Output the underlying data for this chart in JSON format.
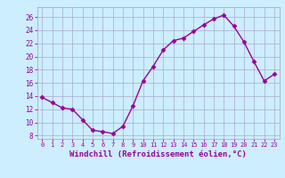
{
  "x": [
    0,
    1,
    2,
    3,
    4,
    5,
    6,
    7,
    8,
    9,
    10,
    11,
    12,
    13,
    14,
    15,
    16,
    17,
    18,
    19,
    20,
    21,
    22,
    23
  ],
  "y": [
    13.8,
    13.0,
    12.2,
    12.0,
    10.4,
    8.8,
    8.6,
    8.3,
    9.4,
    12.5,
    16.3,
    18.5,
    21.0,
    22.4,
    22.8,
    23.8,
    24.8,
    25.7,
    26.3,
    24.6,
    22.2,
    19.2,
    16.3,
    17.3
  ],
  "line_color": "#990099",
  "marker": "D",
  "markersize": 2.5,
  "linewidth": 1.0,
  "xlabel": "Windchill (Refroidissement éolien,°C)",
  "xlabel_fontsize": 6.5,
  "xlim": [
    -0.5,
    23.5
  ],
  "ylim": [
    7.5,
    27.5
  ],
  "yticks": [
    8,
    10,
    12,
    14,
    16,
    18,
    20,
    22,
    24,
    26
  ],
  "xticks": [
    0,
    1,
    2,
    3,
    4,
    5,
    6,
    7,
    8,
    9,
    10,
    11,
    12,
    13,
    14,
    15,
    16,
    17,
    18,
    19,
    20,
    21,
    22,
    23
  ],
  "background_color": "#cceeff",
  "grid_color": "#aaaacc",
  "line_border_color": "#8800aa",
  "tick_label_color": "#990099",
  "font_color": "#990099"
}
